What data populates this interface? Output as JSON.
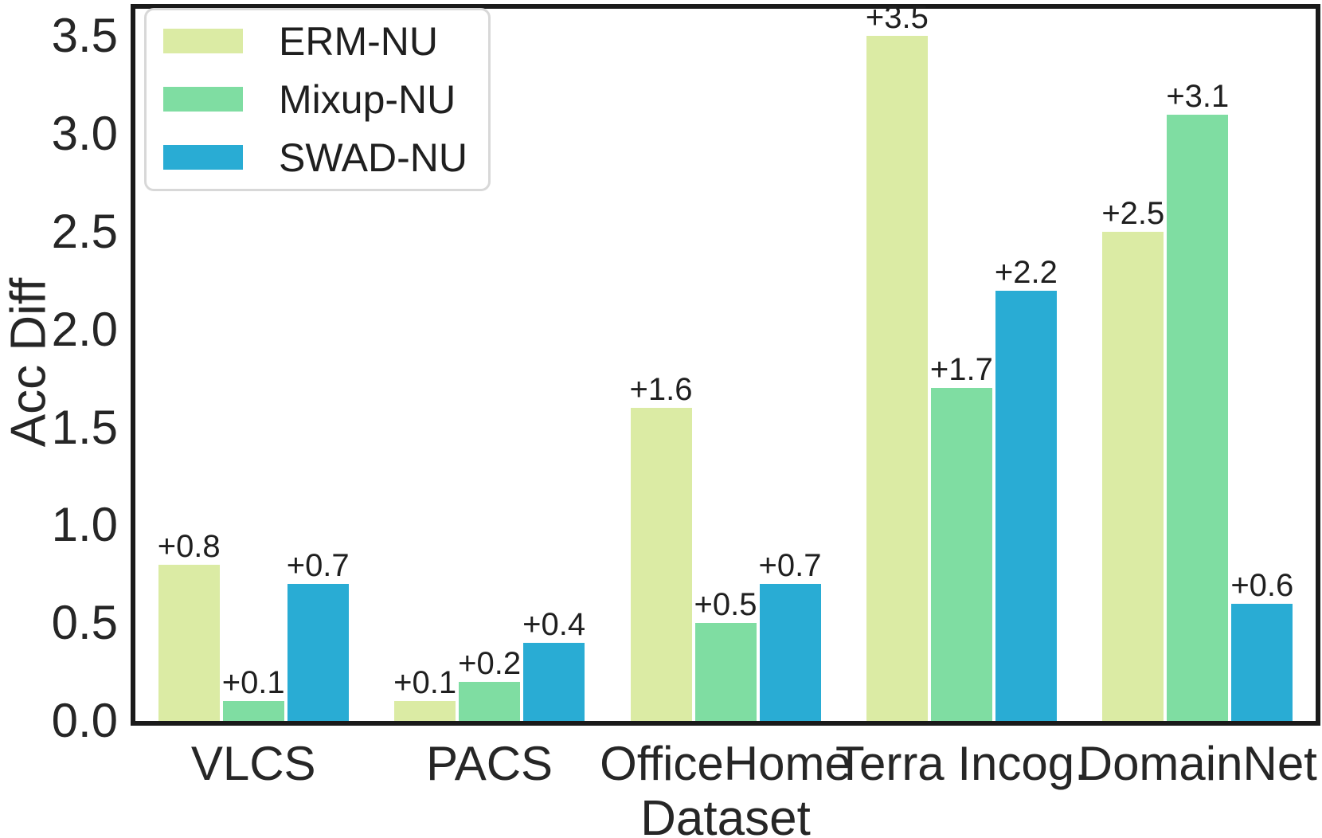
{
  "chart_data": {
    "type": "bar",
    "title": "",
    "xlabel": "Dataset",
    "ylabel": "Acc Diff",
    "categories": [
      "VLCS",
      "PACS",
      "OfficeHome",
      "Terra Incog.",
      "DomainNet"
    ],
    "series": [
      {
        "name": "ERM-NU",
        "color": "#dbeba4",
        "values": [
          0.8,
          0.1,
          1.6,
          3.5,
          2.5
        ],
        "bar_labels": [
          "+0.8",
          "+0.1",
          "+1.6",
          "+3.5",
          "+2.5"
        ]
      },
      {
        "name": "Mixup-NU",
        "color": "#7fdda2",
        "values": [
          0.1,
          0.2,
          0.5,
          1.7,
          3.1
        ],
        "bar_labels": [
          "+0.1",
          "+0.2",
          "+0.5",
          "+1.7",
          "+3.1"
        ]
      },
      {
        "name": "SWAD-NU",
        "color": "#29acd4",
        "values": [
          0.7,
          0.4,
          0.7,
          2.2,
          0.6
        ],
        "bar_labels": [
          "+0.7",
          "+0.4",
          "+0.7",
          "+2.2",
          "+0.6"
        ]
      }
    ],
    "ytick_labels": [
      "0.0",
      "0.5",
      "1.0",
      "1.5",
      "2.0",
      "2.5",
      "3.0",
      "3.5"
    ],
    "ylim": [
      0,
      3.64
    ],
    "grid": false,
    "legend_position": "upper left",
    "colors": {
      "spine": "#1a1a1a",
      "text": "#262626",
      "legend_border": "#d8d8d8",
      "background": "#ffffff"
    }
  }
}
